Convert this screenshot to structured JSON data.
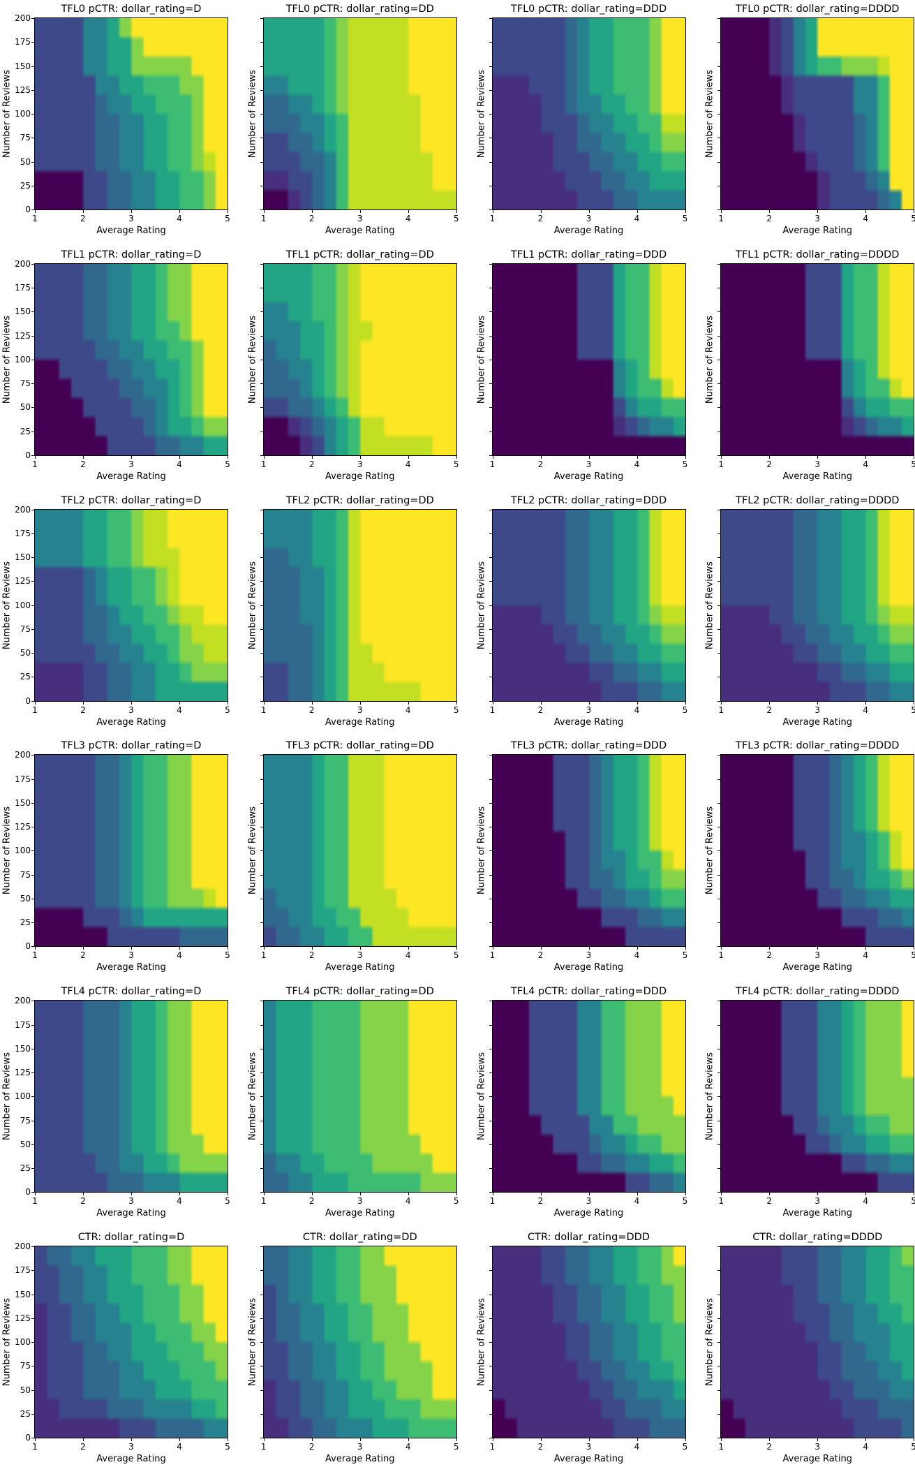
{
  "figure": {
    "background": "#ffffff"
  },
  "chart_data": {
    "type": "heatmap",
    "subtype": "filled-contour-grid",
    "xlabel": "Average Rating",
    "ylabel": "Number of Reviews",
    "x_ticks": [
      1,
      2,
      3,
      4,
      5
    ],
    "y_ticks": [
      0,
      25,
      50,
      75,
      100,
      125,
      150,
      175,
      200
    ],
    "x_range": [
      1,
      5
    ],
    "y_range": [
      0,
      200
    ],
    "colormap": "viridis",
    "levels": [
      "#440154",
      "#472f7d",
      "#3e4989",
      "#31688e",
      "#26828e",
      "#21a585",
      "#3dbc74",
      "#85d349",
      "#c2df23",
      "#fde725"
    ],
    "rows": [
      "TFL0 pCTR",
      "TFL1 pCTR",
      "TFL2 pCTR",
      "TFL3 pCTR",
      "TFL4 pCTR",
      "CTR"
    ],
    "cols": [
      "D",
      "DD",
      "DDD",
      "DDDD"
    ],
    "grid_note": "Each plot: 10 rows (reviews 200 top to 0 bottom) x 16 cols (rating 1 to 5); digit = viridis level index",
    "plots": [
      {
        "title": "TFL0 pCTR: dollar_rating=D",
        "grid": [
          "2222445799999999",
          "2222445579999999",
          "2222445577777999",
          "2222244556667799",
          "2222234455666799",
          "2222233445566799",
          "2222233445566799",
          "2222233445566789",
          "0000223344556679",
          "0000223344556679"
        ]
      },
      {
        "title": "TFL0 pCTR: dollar_rating=DD",
        "grid": [
          "5555567888889999",
          "5555567888889999",
          "5555567888889999",
          "4455567888889999",
          "3344567888888999",
          "3334456888888999",
          "2233456888888999",
          "2223346888888899",
          "1122346888888899",
          "0012346888888888"
        ]
      },
      {
        "title": "TFL0 pCTR: dollar_rating=DDD",
        "grid": [
          "2222223455666799",
          "2222223455666799",
          "2222223455666799",
          "1112223455666799",
          "1111223445566799",
          "1111222344556688",
          "1111122334455677",
          "1111122233445566",
          "1111112223344555",
          "1111111222334444"
        ]
      },
      {
        "title": "TFL0 pCTR: dollar_rating=DDDD",
        "grid": [
          "0000124599999999",
          "0000124599999999",
          "0000124566777899",
          "0000012222244699",
          "0000012222244699",
          "0000001222234699",
          "0000001222234699",
          "0000000122234699",
          "0000000012223499",
          "0000000012222349"
        ]
      },
      {
        "title": "TFL1 pCTR: dollar_rating=D",
        "grid": [
          "2222334455677999",
          "2222334455677999",
          "2222334455677999",
          "2222334455667999",
          "2222233445566799",
          "0022223344556799",
          "0002222334456799",
          "0000222233456799",
          "0000022223455677",
          "0000002222334455"
        ]
      },
      {
        "title": "TFL1 pCTR: dollar_rating=DD",
        "grid": [
          "5555667899999999",
          "5555667899999999",
          "4455667899999999",
          "4445567889999999",
          "3445567899999999",
          "3344567899999999",
          "3334567899999999",
          "2233456899999999",
          "0012345688999999",
          "0001245688888899"
        ]
      },
      {
        "title": "TFL1 pCTR: dollar_rating=DDD",
        "grid": [
          "0000000222566899",
          "0000000222566899",
          "0000000222566899",
          "0000000222566899",
          "0000000222566899",
          "0000000000456899",
          "0000000000456689",
          "0000000000245566",
          "0000000000123445",
          "0000000000000000"
        ]
      },
      {
        "title": "TFL1 pCTR: dollar_rating=DDDD",
        "grid": [
          "0000000222566899",
          "0000000222566899",
          "0000000222566899",
          "0000000222566899",
          "0000000222566899",
          "0000000000456899",
          "0000000000456689",
          "0000000000245566",
          "0000000000123445",
          "0000000000000000"
        ]
      },
      {
        "title": "TFL2 pCTR: dollar_rating=D",
        "grid": [
          "4444556678899999",
          "4444556678899999",
          "4444556678889999",
          "2222345566789999",
          "2222345566789999",
          "2222334556678899",
          "2222334455667888",
          "2222233445567788",
          "1111223344556777",
          "1111223344555555"
        ]
      },
      {
        "title": "TFL2 pCTR: dollar_rating=DD",
        "grid": [
          "4444556899999999",
          "4444556899999999",
          "3344556899999999",
          "3334456899999999",
          "3334456899999999",
          "3334456899999999",
          "3333456899999999",
          "3333456889999999",
          "2233456888999999",
          "2233456888888999"
        ]
      },
      {
        "title": "TFL2 pCTR: dollar_rating=DDD",
        "grid": [
          "2222223344556899",
          "2222223344556899",
          "2222223344556899",
          "2222223344556899",
          "2222223344556899",
          "1111223344556788",
          "1111122334455677",
          "1111112233445566",
          "1111111122334455",
          "1111111112223344"
        ]
      },
      {
        "title": "TFL2 pCTR: dollar_rating=DDDD",
        "grid": [
          "2222223344556899",
          "2222223344556899",
          "2222223344556899",
          "2222223344556899",
          "2222223344556899",
          "1111223344556788",
          "1111122334455677",
          "1111112233445566",
          "1111111122334455",
          "1111111112223344"
        ]
      },
      {
        "title": "TFL3 pCTR: dollar_rating=D",
        "grid": [
          "2222233456677999",
          "2222233456677999",
          "2222233456677999",
          "2222233456677999",
          "2222233456677999",
          "2222233456677999",
          "2222233456677999",
          "2222233456677789",
          "0000222345555555",
          "0000002222223333"
        ]
      },
      {
        "title": "TFL3 pCTR: dollar_rating=DD",
        "grid": [
          "4444566888999999",
          "4444566888999999",
          "4444566888999999",
          "4444566888999999",
          "4444566888999999",
          "4444566888999999",
          "4444566888999999",
          "3444566888899999",
          "3344556688889999",
          "2334455668888888"
        ]
      },
      {
        "title": "TFL3 pCTR: dollar_rating=DDD",
        "grid": [
          "0000022234556899",
          "0000022234556899",
          "0000022234556899",
          "0000022234556899",
          "0000002234556899",
          "0000002234456689",
          "0000002233455677",
          "0000000223344566",
          "0000000002223344",
          "0000000000022222"
        ]
      },
      {
        "title": "TFL3 pCTR: dollar_rating=DDDD",
        "grid": [
          "0000002223456899",
          "0000002223456899",
          "0000002223456899",
          "0000002223456899",
          "0000002223445689",
          "0000000223445689",
          "0000000223345567",
          "0000000022334455",
          "0000000000222334",
          "0000000000002222"
        ]
      },
      {
        "title": "TFL4 pCTR: dollar_rating=D",
        "grid": [
          "2222333455677999",
          "2222333455677999",
          "2222333455677999",
          "2222333455677999",
          "2222333455677999",
          "2222333455677999",
          "2222333455677999",
          "2222333455677799",
          "2222233445567777",
          "2222223334445555"
        ]
      },
      {
        "title": "TFL4 pCTR: dollar_rating=DD",
        "grid": [
          "4555666677779999",
          "4555666677779999",
          "4555666677779999",
          "4555666677779999",
          "4555666677779999",
          "4555666677779999",
          "4555666677779999",
          "4555666677777999",
          "3445566667777799",
          "3344555666666777"
        ]
      },
      {
        "title": "TFL4 pCTR: dollar_rating=DDD",
        "grid": [
          "0002222446677799",
          "0002222446677799",
          "0002222446677799",
          "0002222446677799",
          "0002222446677799",
          "0002222446677779",
          "0000222244667777",
          "0000022234456677",
          "0000000223344556",
          "0000000000022334"
        ]
      },
      {
        "title": "TFL4 pCTR: dollar_rating=DDDD",
        "grid": [
          "0000022244567779",
          "0000022244567779",
          "0000022244567779",
          "0000022244567779",
          "0000022244567777",
          "0000022244567777",
          "0000002234456677",
          "0000000223445566",
          "0000000000223344",
          "0000000000000222"
        ]
      },
      {
        "title": "CTR: dollar_rating=D",
        "grid": [
          "2334455566677999",
          "2233445566677999",
          "2233445556667799",
          "1223344556667799",
          "1223344455666779",
          "1222334455566677",
          "1222333445556667",
          "1222333444555666",
          "1122223334444556",
          "1111111222333344"
        ]
      },
      {
        "title": "CTR: dollar_rating=DD",
        "grid": [
          "3344556677999999",
          "3344556677799999",
          "2344556677799999",
          "2334455667779999",
          "2334455667779999",
          "2233445566777999",
          "2233445566777799",
          "1223344556677799",
          "1223344555666777",
          "1122334445556666"
        ]
      },
      {
        "title": "CTR: dollar_rating=DDD",
        "grid": [
          "1111223344556679",
          "1111223344556677",
          "1111122334455667",
          "1111122334455667",
          "1111112233445566",
          "1111112233445566",
          "1111111223344556",
          "1111111122334445",
          "0111111112233344",
          "0011111111222333"
        ]
      },
      {
        "title": "CTR: dollar_rating=DDDD",
        "grid": [
          "1111122233445567",
          "1111122233445566",
          "1111112233445566",
          "1111112223344556",
          "1111111223344455",
          "1111111122334455",
          "1111111122333445",
          "1111111112233344",
          "0111111111222333",
          "0011111111122223"
        ]
      }
    ]
  }
}
